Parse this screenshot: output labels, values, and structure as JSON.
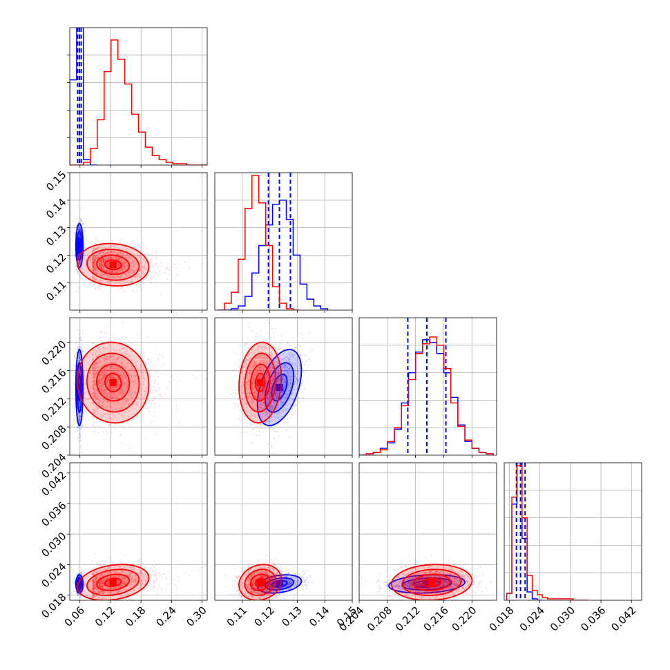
{
  "chart_data": {
    "type": "corner",
    "title": "",
    "parameters": [
      {
        "range": [
          0.04,
          0.31
        ],
        "ticks": [
          0.06,
          0.12,
          0.18,
          0.24,
          0.3
        ],
        "tick_labels": [
          "0.06",
          "0.12",
          "0.18",
          "0.24",
          "0.30"
        ]
      },
      {
        "range": [
          0.1,
          0.15
        ],
        "ticks": [
          0.11,
          0.12,
          0.13,
          0.14,
          0.15
        ],
        "tick_labels": [
          "0.11",
          "0.12",
          "0.13",
          "0.14",
          "0.15"
        ]
      },
      {
        "range": [
          0.204,
          0.2235
        ],
        "ticks": [
          0.204,
          0.208,
          0.212,
          0.216,
          0.22
        ],
        "tick_labels": [
          "0.204",
          "0.208",
          "0.212",
          "0.216",
          "0.220"
        ]
      },
      {
        "range": [
          0.017,
          0.044
        ],
        "ticks": [
          0.018,
          0.024,
          0.03,
          0.036,
          0.042
        ],
        "tick_labels": [
          "0.018",
          "0.024",
          "0.030",
          "0.036",
          "0.042"
        ]
      }
    ],
    "grid": true,
    "series": [
      {
        "color": "#0000ff",
        "marginals": [
          {
            "edges": [
              0.04,
              0.0535,
              0.067,
              0.0805,
              0.094
            ],
            "counts": [
              0.62,
              1.0,
              0.04,
              0.0
            ]
          },
          {
            "edges": [
              0.101,
              0.1035,
              0.106,
              0.1085,
              0.111,
              0.1135,
              0.116,
              0.1185,
              0.121,
              0.1235,
              0.126,
              0.1285,
              0.131,
              0.1335,
              0.136,
              0.1385,
              0.141
            ],
            "counts": [
              0.0,
              0.0,
              0.01,
              0.03,
              0.1,
              0.27,
              0.47,
              0.62,
              0.77,
              0.8,
              0.66,
              0.4,
              0.19,
              0.08,
              0.03,
              0.01
            ]
          },
          {
            "edges": [
              0.204,
              0.205,
              0.206,
              0.207,
              0.208,
              0.209,
              0.21,
              0.211,
              0.212,
              0.213,
              0.214,
              0.215,
              0.216,
              0.217,
              0.218,
              0.219,
              0.22,
              0.221,
              0.222,
              0.223
            ],
            "counts": [
              0.0,
              0.01,
              0.02,
              0.05,
              0.09,
              0.19,
              0.38,
              0.6,
              0.75,
              0.84,
              0.82,
              0.74,
              0.6,
              0.42,
              0.22,
              0.1,
              0.05,
              0.02,
              0.01
            ]
          },
          {
            "edges": [
              0.0175,
              0.0185,
              0.0195,
              0.0205,
              0.0215,
              0.0225,
              0.0235,
              0.0245
            ],
            "counts": [
              0.05,
              0.7,
              1.0,
              0.45,
              0.06,
              0.01,
              0.0
            ]
          }
        ],
        "quantiles": [
          [
            0.0555,
            0.059,
            0.0625
          ],
          [
            0.1195,
            0.1235,
            0.1275
          ],
          [
            0.2109,
            0.2136,
            0.2163
          ],
          [
            0.0194,
            0.0202,
            0.0211
          ]
        ],
        "centers": [
          0.059,
          0.1235,
          0.2136,
          0.0202
        ],
        "sigmas": [
          0.0035,
          0.004,
          0.0027,
          0.0009
        ],
        "correlations": [
          [
            1,
            0,
            0,
            0
          ],
          [
            0,
            1,
            0.45,
            0.3
          ],
          [
            0,
            0.45,
            1,
            0.2
          ],
          [
            0,
            0.3,
            0.2,
            1
          ]
        ],
        "contour_levels": [
          0.7,
          1.3,
          2.0
        ],
        "scatter_count": 900
      },
      {
        "color": "#ff0000",
        "marginals": [
          {
            "edges": [
              0.04,
              0.0535,
              0.067,
              0.0805,
              0.094,
              0.1075,
              0.121,
              0.1345,
              0.148,
              0.1615,
              0.175,
              0.1885,
              0.202,
              0.2155,
              0.229,
              0.2425,
              0.256,
              0.2695,
              0.283,
              0.2965,
              0.31
            ],
            "counts": [
              0.0,
              0.0,
              0.02,
              0.12,
              0.33,
              0.68,
              0.91,
              0.77,
              0.59,
              0.37,
              0.24,
              0.13,
              0.07,
              0.04,
              0.02,
              0.01,
              0.01,
              0.0,
              0.0,
              0.0
            ]
          },
          {
            "edges": [
              0.1035,
              0.106,
              0.1085,
              0.111,
              0.1135,
              0.116,
              0.1185,
              0.121,
              0.1235,
              0.126,
              0.1285,
              0.131
            ],
            "counts": [
              0.05,
              0.13,
              0.37,
              0.74,
              0.98,
              0.78,
              0.47,
              0.17,
              0.05,
              0.01,
              0.0
            ]
          },
          {
            "edges": [
              0.204,
              0.205,
              0.206,
              0.207,
              0.208,
              0.209,
              0.21,
              0.211,
              0.212,
              0.213,
              0.214,
              0.215,
              0.216,
              0.217,
              0.218,
              0.219,
              0.22,
              0.221,
              0.222,
              0.223
            ],
            "counts": [
              0.0,
              0.01,
              0.02,
              0.04,
              0.1,
              0.2,
              0.36,
              0.55,
              0.74,
              0.81,
              0.86,
              0.8,
              0.63,
              0.38,
              0.21,
              0.11,
              0.05,
              0.02,
              0.01
            ]
          },
          {
            "edges": [
              0.0175,
              0.0185,
              0.0195,
              0.0205,
              0.0215,
              0.0225,
              0.0235,
              0.0245,
              0.0255,
              0.0275,
              0.0305,
              0.0335
            ],
            "counts": [
              0.05,
              0.75,
              0.98,
              0.6,
              0.18,
              0.07,
              0.04,
              0.02,
              0.01,
              0.01,
              0.0
            ]
          }
        ],
        "centers": [
          0.125,
          0.1165,
          0.2143,
          0.0205
        ],
        "sigmas": [
          0.032,
          0.0035,
          0.0026,
          0.0016
        ],
        "correlations": [
          [
            1,
            -0.1,
            -0.05,
            0.25
          ],
          [
            -0.1,
            1,
            0.1,
            0.15
          ],
          [
            -0.05,
            0.1,
            1,
            0.1
          ],
          [
            0.25,
            0.15,
            0.1,
            1
          ]
        ],
        "contour_levels": [
          0.5,
          1.0,
          1.6,
          2.2
        ],
        "scatter_count": 1500
      }
    ]
  }
}
